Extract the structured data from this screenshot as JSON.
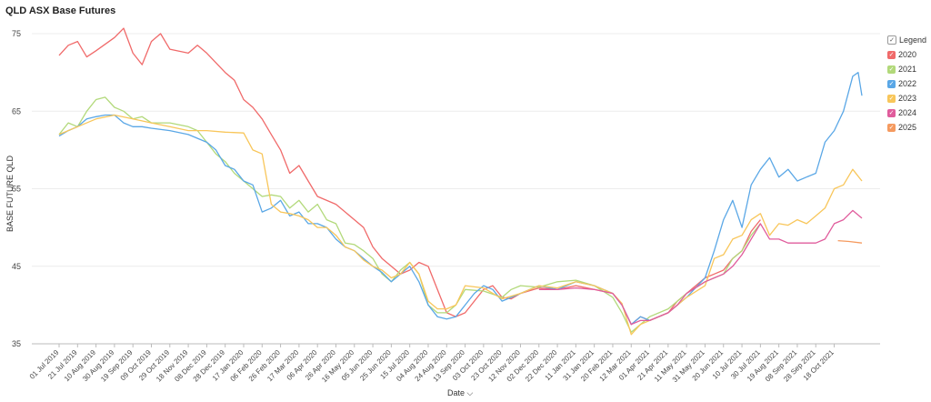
{
  "title": "QLD ASX Base Futures",
  "legend_title": "Legend",
  "chart_data": {
    "type": "line",
    "ylabel": "BASE FUTURE QLD",
    "xlabel": "Date ⌵",
    "ylim": [
      35,
      77
    ],
    "yticks": [
      35,
      45,
      55,
      65,
      75
    ],
    "x_tick_labels": [
      "01 Jul 2019",
      "21 Jul 2019",
      "10 Aug 2019",
      "30 Aug 2019",
      "19 Sep 2019",
      "09 Oct 2019",
      "29 Oct 2019",
      "18 Nov 2019",
      "08 Dec 2019",
      "28 Dec 2019",
      "17 Jan 2020",
      "06 Feb 2020",
      "26 Feb 2020",
      "17 Mar 2020",
      "06 Apr 2020",
      "26 Apr 2020",
      "16 May 2020",
      "05 Jun 2020",
      "25 Jun 2020",
      "15 Jul 2020",
      "04 Aug 2020",
      "24 Aug 2020",
      "13 Sep 2020",
      "03 Oct 2020",
      "23 Oct 2020",
      "12 Nov 2020",
      "02 Dec 2020",
      "22 Dec 2020",
      "11 Jan 2021",
      "31 Jan 2021",
      "20 Feb 2021",
      "12 Mar 2021",
      "01 Apr 2021",
      "21 Apr 2021",
      "11 May 2021",
      "31 May 2021",
      "20 Jun 2021",
      "10 Jul 2021",
      "30 Jul 2021",
      "19 Aug 2021",
      "08 Sep 2021",
      "28 Sep 2021",
      "18 Oct 2021"
    ],
    "x_index_max": 43.5,
    "grid": true,
    "legend_position": "right",
    "series": [
      {
        "name": "2020",
        "color": "#f06a6a",
        "points": [
          [
            0,
            72.2
          ],
          [
            0.5,
            73.5
          ],
          [
            1,
            74
          ],
          [
            1.5,
            72
          ],
          [
            2,
            72.8
          ],
          [
            3,
            74.5
          ],
          [
            3.5,
            75.7
          ],
          [
            4,
            72.5
          ],
          [
            4.5,
            71
          ],
          [
            5,
            74
          ],
          [
            5.5,
            75
          ],
          [
            6,
            73
          ],
          [
            7,
            72.5
          ],
          [
            7.5,
            73.5
          ],
          [
            8,
            72.5
          ],
          [
            9,
            70
          ],
          [
            9.5,
            69
          ],
          [
            10,
            66.5
          ],
          [
            10.5,
            65.5
          ],
          [
            11,
            64
          ],
          [
            11.5,
            62
          ],
          [
            12,
            60
          ],
          [
            12.5,
            57
          ],
          [
            13,
            58
          ],
          [
            13.5,
            56
          ],
          [
            14,
            54
          ],
          [
            15,
            53
          ],
          [
            16,
            51
          ],
          [
            16.5,
            50
          ],
          [
            17,
            47.5
          ],
          [
            17.5,
            46
          ],
          [
            18,
            45
          ],
          [
            18.5,
            44
          ],
          [
            19,
            44.5
          ],
          [
            19.5,
            45.5
          ],
          [
            20,
            45
          ],
          [
            20.5,
            42
          ],
          [
            21,
            39
          ],
          [
            21.5,
            38.5
          ],
          [
            22,
            39
          ],
          [
            22.5,
            40.5
          ],
          [
            23,
            42
          ],
          [
            23.5,
            42.5
          ],
          [
            24,
            41
          ],
          [
            24.5,
            40.8
          ],
          [
            25,
            41.5
          ],
          [
            26,
            42.2
          ],
          [
            27,
            42
          ],
          [
            28,
            42.5
          ],
          [
            29,
            42
          ],
          [
            30,
            41.5
          ],
          [
            30.5,
            40
          ],
          [
            31,
            37.5
          ],
          [
            31.5,
            38.5
          ],
          [
            32,
            38
          ],
          [
            33,
            39
          ],
          [
            33.5,
            40.5
          ],
          [
            34,
            41.5
          ],
          [
            34.5,
            42.5
          ],
          [
            35,
            43.5
          ],
          [
            35.5,
            44
          ],
          [
            36,
            44.5
          ],
          [
            36.5,
            46
          ],
          [
            37,
            47
          ],
          [
            37.5,
            49.5
          ],
          [
            38,
            51
          ]
        ]
      },
      {
        "name": "2021",
        "color": "#b2d97a",
        "points": [
          [
            0,
            62
          ],
          [
            0.5,
            63.5
          ],
          [
            1,
            63
          ],
          [
            1.5,
            65
          ],
          [
            2,
            66.5
          ],
          [
            2.5,
            66.8
          ],
          [
            3,
            65.5
          ],
          [
            3.5,
            65
          ],
          [
            4,
            64
          ],
          [
            4.5,
            64.3
          ],
          [
            5,
            63.5
          ],
          [
            6,
            63.5
          ],
          [
            7,
            63
          ],
          [
            7.5,
            62.5
          ],
          [
            8,
            61
          ],
          [
            8.5,
            59.5
          ],
          [
            9,
            58.5
          ],
          [
            9.5,
            57
          ],
          [
            10,
            56
          ],
          [
            10.5,
            55
          ],
          [
            11,
            54
          ],
          [
            11.5,
            54.2
          ],
          [
            12,
            54
          ],
          [
            12.5,
            52.5
          ],
          [
            13,
            53.5
          ],
          [
            13.5,
            52
          ],
          [
            14,
            53
          ],
          [
            14.5,
            51
          ],
          [
            15,
            50.5
          ],
          [
            15.5,
            48
          ],
          [
            16,
            47.8
          ],
          [
            16.5,
            47
          ],
          [
            17,
            46
          ],
          [
            17.5,
            44
          ],
          [
            18,
            43
          ],
          [
            18.5,
            44.5
          ],
          [
            19,
            45.5
          ],
          [
            19.5,
            44
          ],
          [
            20,
            40
          ],
          [
            20.5,
            39
          ],
          [
            21,
            39
          ],
          [
            21.5,
            40
          ],
          [
            22,
            42
          ],
          [
            23,
            41.8
          ],
          [
            24,
            41
          ],
          [
            24.5,
            42
          ],
          [
            25,
            42.5
          ],
          [
            26,
            42.3
          ],
          [
            27,
            43
          ],
          [
            28,
            43.2
          ],
          [
            29,
            42.5
          ],
          [
            30,
            41
          ],
          [
            30.5,
            39
          ],
          [
            31,
            36.5
          ],
          [
            31.5,
            37.5
          ],
          [
            32,
            38.5
          ],
          [
            33,
            39.5
          ],
          [
            34,
            41.5
          ],
          [
            35,
            43
          ],
          [
            36,
            44
          ],
          [
            36.5,
            46
          ],
          [
            37,
            47
          ],
          [
            37.5,
            49
          ],
          [
            38,
            50.5
          ]
        ]
      },
      {
        "name": "2022",
        "color": "#5aa7e6",
        "points": [
          [
            0,
            61.8
          ],
          [
            0.5,
            62.5
          ],
          [
            1,
            63
          ],
          [
            1.5,
            64
          ],
          [
            2,
            64.3
          ],
          [
            2.5,
            64.5
          ],
          [
            3,
            64.5
          ],
          [
            3.5,
            63.5
          ],
          [
            4,
            63
          ],
          [
            4.5,
            63
          ],
          [
            5,
            62.8
          ],
          [
            6,
            62.5
          ],
          [
            7,
            62
          ],
          [
            8,
            61
          ],
          [
            8.5,
            60
          ],
          [
            9,
            58
          ],
          [
            9.5,
            57.5
          ],
          [
            10,
            56
          ],
          [
            10.5,
            55.5
          ],
          [
            11,
            52
          ],
          [
            11.5,
            52.5
          ],
          [
            12,
            53.5
          ],
          [
            12.5,
            51.5
          ],
          [
            13,
            52
          ],
          [
            13.5,
            50.5
          ],
          [
            14,
            50.5
          ],
          [
            14.5,
            50
          ],
          [
            15,
            48.5
          ],
          [
            15.5,
            47.5
          ],
          [
            16,
            47
          ],
          [
            16.5,
            46
          ],
          [
            17,
            45
          ],
          [
            17.5,
            44.2
          ],
          [
            18,
            43
          ],
          [
            18.5,
            44
          ],
          [
            19,
            45
          ],
          [
            19.5,
            43
          ],
          [
            20,
            40
          ],
          [
            20.5,
            38.5
          ],
          [
            21,
            38.2
          ],
          [
            21.5,
            38.5
          ],
          [
            22,
            40
          ],
          [
            22.5,
            41.5
          ],
          [
            23,
            42.5
          ],
          [
            23.5,
            42
          ],
          [
            24,
            40.5
          ],
          [
            25,
            41.5
          ],
          [
            26,
            42.5
          ],
          [
            27,
            42
          ],
          [
            28,
            43
          ],
          [
            29,
            42.5
          ],
          [
            30,
            41.5
          ],
          [
            30.5,
            40
          ],
          [
            31,
            37.5
          ],
          [
            31.5,
            38.5
          ],
          [
            32,
            38
          ],
          [
            33,
            39
          ],
          [
            34,
            41
          ],
          [
            35,
            43.5
          ],
          [
            35.5,
            47
          ],
          [
            36,
            51
          ],
          [
            36.5,
            53.5
          ],
          [
            37,
            50
          ],
          [
            37.5,
            55.5
          ],
          [
            38,
            57.5
          ],
          [
            38.5,
            59
          ],
          [
            39,
            56.5
          ],
          [
            39.5,
            57.5
          ],
          [
            40,
            56
          ],
          [
            40.5,
            56.5
          ],
          [
            41,
            57
          ],
          [
            41.5,
            61
          ],
          [
            42,
            62.5
          ],
          [
            42.5,
            65
          ],
          [
            43,
            69.5
          ],
          [
            43.3,
            70
          ],
          [
            43.5,
            67
          ]
        ]
      },
      {
        "name": "2023",
        "color": "#f8c65a",
        "points": [
          [
            0,
            62
          ],
          [
            1,
            63
          ],
          [
            2,
            64
          ],
          [
            3,
            64.5
          ],
          [
            4,
            64
          ],
          [
            5,
            63.5
          ],
          [
            6,
            63
          ],
          [
            7,
            62.5
          ],
          [
            8,
            62.5
          ],
          [
            9,
            62.3
          ],
          [
            10,
            62.2
          ],
          [
            10.5,
            60
          ],
          [
            11,
            59.5
          ],
          [
            11.5,
            53
          ],
          [
            12,
            52
          ],
          [
            12.5,
            51.8
          ],
          [
            13,
            51.5
          ],
          [
            13.5,
            51
          ],
          [
            14,
            50
          ],
          [
            14.5,
            50
          ],
          [
            15,
            49
          ],
          [
            15.5,
            47.5
          ],
          [
            16,
            47
          ],
          [
            16.5,
            45.8
          ],
          [
            17,
            45
          ],
          [
            17.5,
            44.5
          ],
          [
            18,
            43.5
          ],
          [
            18.5,
            44
          ],
          [
            19,
            45.5
          ],
          [
            19.5,
            44
          ],
          [
            20,
            40.5
          ],
          [
            20.5,
            39.5
          ],
          [
            21,
            39.5
          ],
          [
            21.5,
            40
          ],
          [
            22,
            42.5
          ],
          [
            23,
            42.2
          ],
          [
            24,
            40.8
          ],
          [
            25,
            41.5
          ],
          [
            26,
            42.5
          ],
          [
            27,
            42.2
          ],
          [
            28,
            43
          ],
          [
            29,
            42.5
          ],
          [
            30,
            41.5
          ],
          [
            30.5,
            40.2
          ],
          [
            31,
            36.2
          ],
          [
            31.5,
            37.5
          ],
          [
            32,
            38
          ],
          [
            33,
            39
          ],
          [
            34,
            41
          ],
          [
            35,
            42.5
          ],
          [
            35.5,
            46
          ],
          [
            36,
            46.5
          ],
          [
            36.5,
            48.5
          ],
          [
            37,
            49
          ],
          [
            37.5,
            51
          ],
          [
            38,
            51.8
          ],
          [
            38.5,
            49
          ],
          [
            39,
            50.5
          ],
          [
            39.5,
            50.3
          ],
          [
            40,
            51
          ],
          [
            40.5,
            50.5
          ],
          [
            41,
            51.5
          ],
          [
            41.5,
            52.5
          ],
          [
            42,
            55
          ],
          [
            42.5,
            55.5
          ],
          [
            43,
            57.5
          ],
          [
            43.5,
            56
          ]
        ]
      },
      {
        "name": "2024",
        "color": "#e05c9c",
        "points": [
          [
            26,
            42
          ],
          [
            27,
            42
          ],
          [
            28,
            42.2
          ],
          [
            29,
            42
          ],
          [
            30,
            41.5
          ],
          [
            30.5,
            40
          ],
          [
            31,
            37.5
          ],
          [
            31.5,
            38
          ],
          [
            32,
            38
          ],
          [
            33,
            39
          ],
          [
            33.5,
            40
          ],
          [
            34,
            41.5
          ],
          [
            35,
            43
          ],
          [
            35.5,
            43.5
          ],
          [
            36,
            44
          ],
          [
            36.5,
            45
          ],
          [
            37,
            46.5
          ],
          [
            37.5,
            48.5
          ],
          [
            38,
            50.5
          ],
          [
            38.5,
            48.5
          ],
          [
            39,
            48.5
          ],
          [
            39.5,
            48
          ],
          [
            40,
            48
          ],
          [
            41,
            48
          ],
          [
            41.5,
            48.5
          ],
          [
            42,
            50.5
          ],
          [
            42.5,
            51
          ],
          [
            43,
            52.2
          ],
          [
            43.5,
            51.2
          ]
        ]
      },
      {
        "name": "2025",
        "color": "#f59a5f",
        "points": [
          [
            42.2,
            48.3
          ],
          [
            42.8,
            48.2
          ],
          [
            43.5,
            48
          ]
        ]
      }
    ]
  }
}
